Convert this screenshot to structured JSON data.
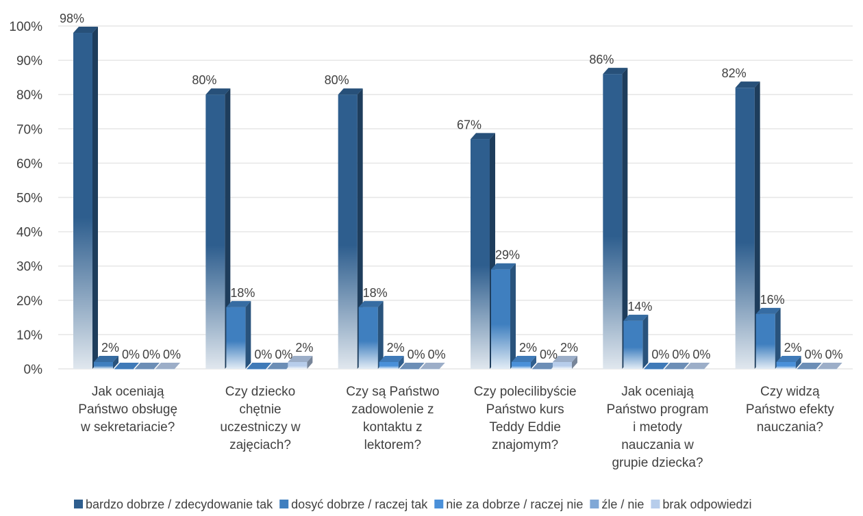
{
  "chart_data": {
    "type": "bar",
    "categories": [
      [
        "Jak oceniają",
        "Państwo obsługę",
        "w sekretariacie?"
      ],
      [
        "Czy dziecko",
        "chętnie",
        "uczestniczy w",
        "zajęciach?"
      ],
      [
        "Czy są Państwo",
        "zadowolenie z",
        "kontaktu z",
        "lektorem?"
      ],
      [
        "Czy polecilibyście",
        "Państwo kurs",
        "Teddy Eddie",
        "znajomym?"
      ],
      [
        "Jak oceniają",
        "Państwo program",
        "i metody",
        "nauczania w",
        "grupie dziecka?"
      ],
      [
        "Czy widzą",
        "Państwo efekty",
        "nauczania?"
      ]
    ],
    "series": [
      {
        "name": "bardzo dobrze / zdecydowanie tak",
        "values": [
          98,
          80,
          80,
          67,
          86,
          82
        ],
        "labels": [
          "98%",
          "80%",
          "80%",
          "67%",
          "86%",
          "82%"
        ],
        "color": "#2E5E8E"
      },
      {
        "name": "dosyć dobrze / raczej tak",
        "values": [
          2,
          18,
          18,
          29,
          14,
          16
        ],
        "labels": [
          "2%",
          "18%",
          "18%",
          "29%",
          "14%",
          "16%"
        ],
        "color": "#3F7FBF"
      },
      {
        "name": "nie za dobrze / raczej nie",
        "values": [
          0,
          0,
          2,
          2,
          0,
          2
        ],
        "labels": [
          "0%",
          "0%",
          "2%",
          "2%",
          "0%",
          "2%"
        ],
        "color": "#4A90D9"
      },
      {
        "name": "źle / nie",
        "values": [
          0,
          0,
          0,
          0,
          0,
          0
        ],
        "labels": [
          "0%",
          "0%",
          "0%",
          "0%",
          "0%",
          "0%"
        ],
        "color": "#7FA7D6"
      },
      {
        "name": "brak odpowiedzi",
        "values": [
          0,
          2,
          0,
          2,
          0,
          0
        ],
        "labels": [
          "0%",
          "2%",
          "0%",
          "2%",
          "0%",
          "0%"
        ],
        "color": "#B7CDEB"
      }
    ],
    "yticks": [
      "0%",
      "10%",
      "20%",
      "30%",
      "40%",
      "50%",
      "60%",
      "70%",
      "80%",
      "90%",
      "100%"
    ],
    "ylim": [
      0,
      100
    ],
    "grid": true,
    "legend": "bottom",
    "xlabel": "",
    "ylabel": "",
    "title": ""
  }
}
